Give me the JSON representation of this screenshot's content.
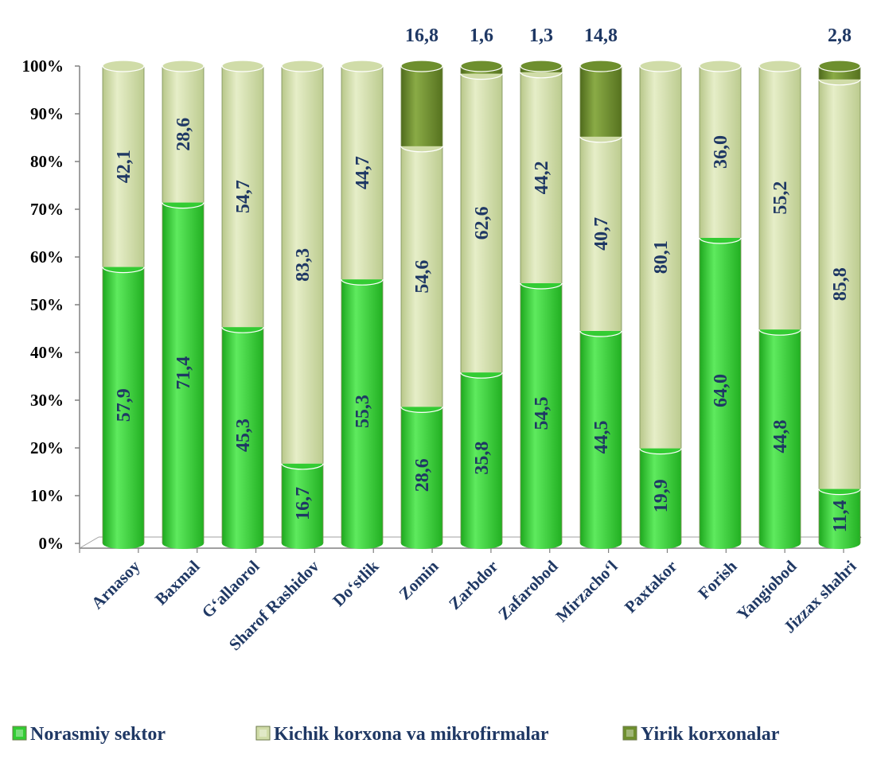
{
  "chart_data": {
    "type": "bar",
    "stacked": true,
    "percent": true,
    "ylim": [
      0,
      100
    ],
    "y_ticks": [
      "0%",
      "10%",
      "20%",
      "30%",
      "40%",
      "50%",
      "60%",
      "70%",
      "80%",
      "90%",
      "100%"
    ],
    "categories": [
      "Arnasoy",
      "Baxmal",
      "G‘allaorol",
      "Sharof Rashidov",
      "Do‘stlik",
      "Zomin",
      "Zarbdor",
      "Zafarobod",
      "Mirzacho‘l",
      "Paxtakor",
      "Forish",
      "Yangiobod",
      "Jizzax shahri"
    ],
    "series": [
      {
        "name": "Norasmiy sektor",
        "color": "#33cc33",
        "values": [
          57.9,
          71.4,
          45.3,
          16.7,
          55.3,
          28.6,
          35.8,
          54.5,
          44.5,
          19.9,
          64.0,
          44.8,
          11.4
        ],
        "labels": [
          "57,9",
          "71,4",
          "45,3",
          "16,7",
          "55,3",
          "28,6",
          "35,8",
          "54,5",
          "44,5",
          "19,9",
          "64,0",
          "44,8",
          "11,4"
        ]
      },
      {
        "name": "Kichik korxona va mikrofirmalar",
        "color": "#d0dca8",
        "values": [
          42.1,
          28.6,
          54.7,
          83.3,
          44.7,
          54.6,
          62.6,
          44.2,
          40.7,
          80.1,
          36.0,
          55.2,
          85.8
        ],
        "labels": [
          "42,1",
          "28,6",
          "54,7",
          "83,3",
          "44,7",
          "54,6",
          "62,6",
          "44,2",
          "40,7",
          "80,1",
          "36,0",
          "55,2",
          "85,8"
        ]
      },
      {
        "name": "Yirik korxonalar",
        "color": "#6e8f2e",
        "values": [
          0,
          0,
          0,
          0,
          0,
          16.8,
          1.6,
          1.3,
          14.8,
          0,
          0,
          0,
          2.8
        ],
        "labels": [
          "",
          "",
          "",
          "",
          "",
          "16,8",
          "1,6",
          "1,3",
          "14,8",
          "",
          "",
          "",
          "2,8"
        ]
      }
    ],
    "legend_position": "bottom",
    "grid": false
  }
}
